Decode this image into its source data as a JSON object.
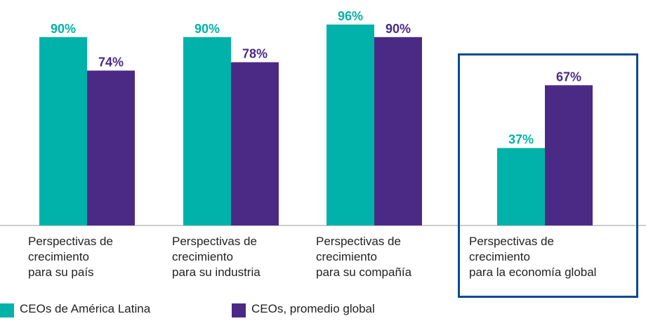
{
  "chart_data": {
    "type": "bar",
    "categories": [
      "Perspectivas de\ncrecimiento\npara su país",
      "Perspectivas de\ncrecimiento\npara su industria",
      "Perspectivas de\ncrecimiento\npara su compañía",
      "Perspectivas de\ncrecimiento\npara la economía global"
    ],
    "series": [
      {
        "name": "CEOs de América Latina",
        "color": "#00b2a9",
        "values": [
          90,
          90,
          96,
          37
        ],
        "value_labels": [
          "90%",
          "90%",
          "96%",
          "37%"
        ]
      },
      {
        "name": "CEOs, promedio global",
        "color": "#4b2a85",
        "values": [
          74,
          78,
          90,
          67
        ],
        "value_labels": [
          "74%",
          "78%",
          "90%",
          "67%"
        ]
      }
    ],
    "ylim": [
      0,
      100
    ]
  }
}
